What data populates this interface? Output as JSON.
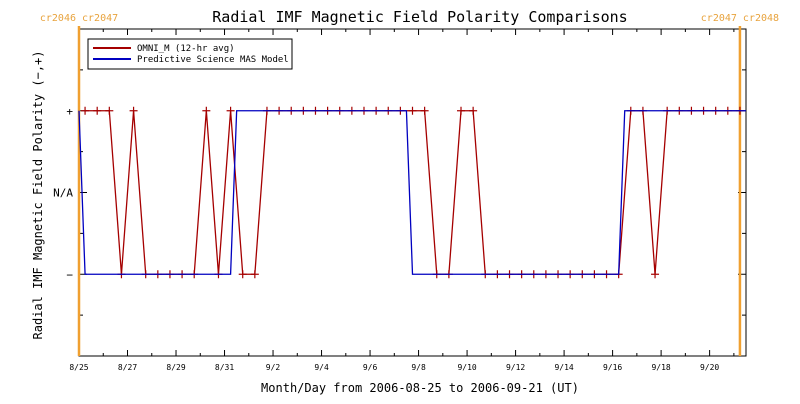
{
  "colors": {
    "omni": "#a50000",
    "mas": "#0000c0",
    "carrington": "#f0a030",
    "axis": "#000000"
  },
  "chart_data": {
    "type": "line",
    "title": "Radial IMF Magnetic Field Polarity Comparisons",
    "xlabel": "Month/Day from 2006-08-25 to 2006-09-21 (UT)",
    "ylabel": "Radial IMF Magnetic Field Polarity (−,+)",
    "xlim": [
      "2006-08-25",
      "2006-09-21 12:00"
    ],
    "x_tick_labels": [
      "8/25",
      "8/27",
      "8/29",
      "8/31",
      "9/2",
      "9/4",
      "9/6",
      "9/8",
      "9/10",
      "9/12",
      "9/14",
      "9/16",
      "9/18",
      "9/20"
    ],
    "y_tick_labels": [
      {
        "value": 1,
        "label": "+"
      },
      {
        "value": 0,
        "label": "N/A"
      },
      {
        "value": -1,
        "label": "−"
      }
    ],
    "ylim": [
      -2,
      2
    ],
    "carrington_markers": [
      {
        "x": "2006-08-25",
        "label": "cr2046 cr2047",
        "side": "left"
      },
      {
        "x": "2006-09-21 06:00",
        "label": "cr2047 cr2048",
        "side": "right"
      }
    ],
    "legend_position": "top-left",
    "series": [
      {
        "name": "OMNI_M (12-hr avg)",
        "marker": "+",
        "points": [
          [
            "2006-08-25 06:00",
            1
          ],
          [
            "2006-08-25 18:00",
            1
          ],
          [
            "2006-08-26 06:00",
            1
          ],
          [
            "2006-08-26 18:00",
            -1
          ],
          [
            "2006-08-27 06:00",
            1
          ],
          [
            "2006-08-27 18:00",
            -1
          ],
          [
            "2006-08-28 06:00",
            -1
          ],
          [
            "2006-08-28 18:00",
            -1
          ],
          [
            "2006-08-29 06:00",
            -1
          ],
          [
            "2006-08-29 18:00",
            -1
          ],
          [
            "2006-08-30 06:00",
            1
          ],
          [
            "2006-08-30 18:00",
            -1
          ],
          [
            "2006-08-31 06:00",
            1
          ],
          [
            "2006-08-31 18:00",
            -1
          ],
          [
            "2006-09-01 06:00",
            -1
          ],
          [
            "2006-09-01 18:00",
            1
          ],
          [
            "2006-09-02 06:00",
            1
          ],
          [
            "2006-09-02 18:00",
            1
          ],
          [
            "2006-09-03 06:00",
            1
          ],
          [
            "2006-09-03 18:00",
            1
          ],
          [
            "2006-09-04 06:00",
            1
          ],
          [
            "2006-09-04 18:00",
            1
          ],
          [
            "2006-09-05 06:00",
            1
          ],
          [
            "2006-09-05 18:00",
            1
          ],
          [
            "2006-09-06 06:00",
            1
          ],
          [
            "2006-09-06 18:00",
            1
          ],
          [
            "2006-09-07 06:00",
            1
          ],
          [
            "2006-09-07 18:00",
            1
          ],
          [
            "2006-09-08 06:00",
            1
          ],
          [
            "2006-09-08 18:00",
            -1
          ],
          [
            "2006-09-09 06:00",
            -1
          ],
          [
            "2006-09-09 18:00",
            1
          ],
          [
            "2006-09-10 06:00",
            1
          ],
          [
            "2006-09-10 18:00",
            -1
          ],
          [
            "2006-09-11 06:00",
            -1
          ],
          [
            "2006-09-11 18:00",
            -1
          ],
          [
            "2006-09-12 06:00",
            -1
          ],
          [
            "2006-09-12 18:00",
            -1
          ],
          [
            "2006-09-13 06:00",
            -1
          ],
          [
            "2006-09-13 18:00",
            -1
          ],
          [
            "2006-09-14 06:00",
            -1
          ],
          [
            "2006-09-14 18:00",
            -1
          ],
          [
            "2006-09-15 06:00",
            -1
          ],
          [
            "2006-09-15 18:00",
            -1
          ],
          [
            "2006-09-16 06:00",
            -1
          ],
          [
            "2006-09-16 18:00",
            1
          ],
          [
            "2006-09-17 06:00",
            1
          ],
          [
            "2006-09-17 18:00",
            -1
          ],
          [
            "2006-09-18 06:00",
            1
          ],
          [
            "2006-09-18 18:00",
            1
          ],
          [
            "2006-09-19 06:00",
            1
          ],
          [
            "2006-09-19 18:00",
            1
          ],
          [
            "2006-09-20 06:00",
            1
          ],
          [
            "2006-09-20 18:00",
            1
          ],
          [
            "2006-09-21 06:00",
            1
          ]
        ]
      },
      {
        "name": "Predictive Science MAS Model",
        "marker": "",
        "points": [
          [
            "2006-08-25 00:00",
            1
          ],
          [
            "2006-08-25 06:00",
            -1
          ],
          [
            "2006-08-31 06:00",
            -1
          ],
          [
            "2006-08-31 12:00",
            1
          ],
          [
            "2006-09-07 12:00",
            1
          ],
          [
            "2006-09-07 18:00",
            -1
          ],
          [
            "2006-09-16 06:00",
            -1
          ],
          [
            "2006-09-16 12:00",
            1
          ],
          [
            "2006-09-21 12:00",
            1
          ]
        ]
      }
    ]
  }
}
